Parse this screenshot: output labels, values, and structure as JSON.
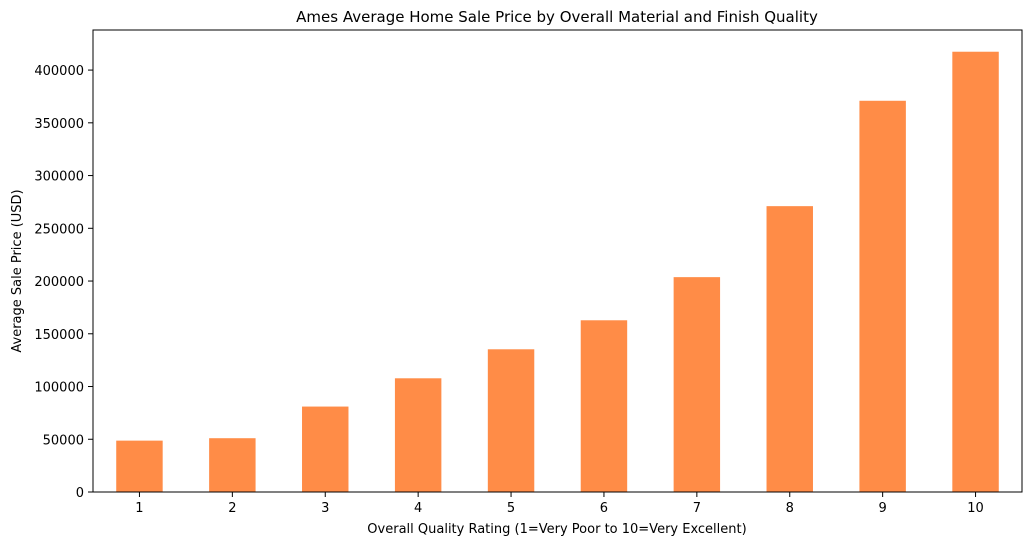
{
  "chart_data": {
    "type": "bar",
    "title": "Ames Average Home Sale Price by Overall Material and Finish Quality",
    "xlabel": "Overall Quality Rating (1=Very Poor to 10=Very Excellent)",
    "ylabel": "Average Sale Price (USD)",
    "categories": [
      "1",
      "2",
      "3",
      "4",
      "5",
      "6",
      "7",
      "8",
      "9",
      "10"
    ],
    "values": [
      48700,
      51000,
      81000,
      107800,
      135300,
      162800,
      203700,
      271000,
      370900,
      417400
    ],
    "ylim": [
      0,
      438000
    ],
    "yticks": [
      0,
      50000,
      100000,
      150000,
      200000,
      250000,
      300000,
      350000,
      400000
    ],
    "ytick_labels": [
      "0",
      "50000",
      "100000",
      "150000",
      "200000",
      "250000",
      "300000",
      "350000",
      "400000"
    ],
    "bar_color": "#ff8c47",
    "grid": false,
    "legend": "none"
  }
}
